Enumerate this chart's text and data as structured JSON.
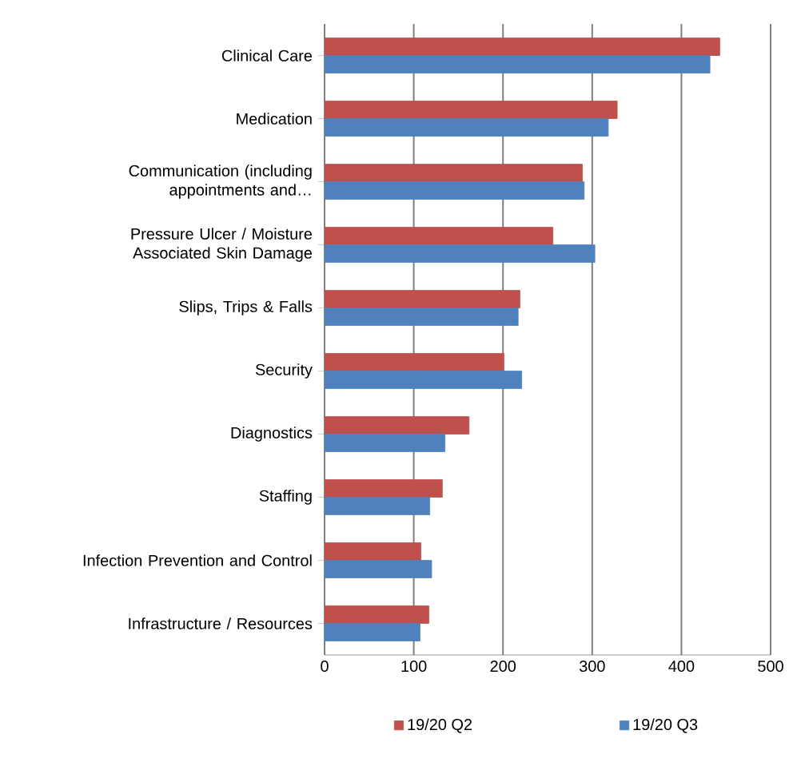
{
  "chart_data": {
    "type": "bar",
    "orientation": "horizontal",
    "categories": [
      "Clinical Care",
      "Medication",
      "Communication (including appointments and…",
      "Pressure Ulcer / Moisture Associated Skin Damage",
      "Slips, Trips & Falls",
      "Security",
      "Diagnostics",
      "Staffing",
      "Infection Prevention and Control",
      "Infrastructure / Resources"
    ],
    "series": [
      {
        "name": "19/20 Q2",
        "color": "#c0504d",
        "values": [
          443,
          328,
          289,
          256,
          219,
          201,
          162,
          132,
          108,
          117
        ]
      },
      {
        "name": "19/20 Q3",
        "color": "#4f81bd",
        "values": [
          432,
          318,
          291,
          303,
          217,
          221,
          135,
          118,
          120,
          107
        ]
      }
    ],
    "xlim": [
      0,
      500
    ],
    "xticks": [
      0,
      100,
      200,
      300,
      400,
      500
    ],
    "grid": "x",
    "legend": "bottom"
  }
}
